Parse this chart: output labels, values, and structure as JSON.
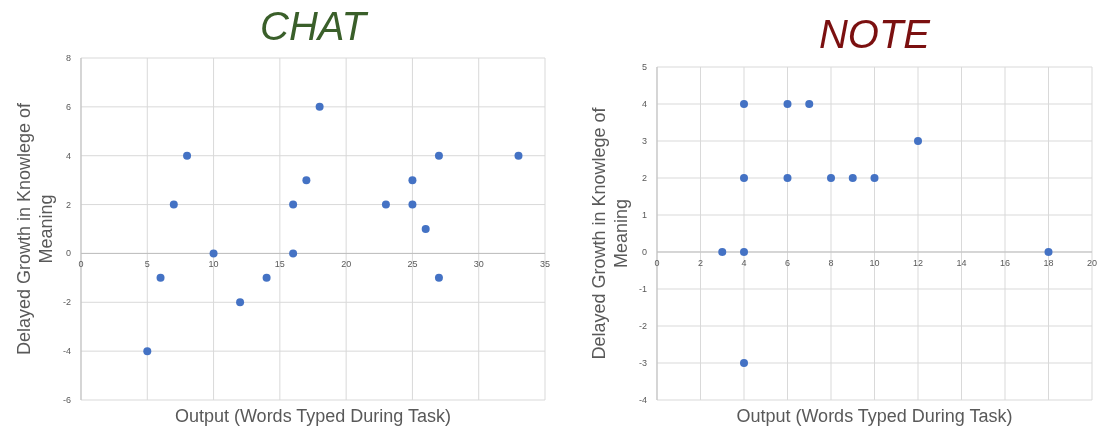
{
  "chart_data": [
    {
      "type": "scatter",
      "title": "CHAT",
      "xlabel": "Output (Words Typed During Task)",
      "ylabel": "Delayed Growth in Knowlege of Meaning",
      "x": [
        5,
        6,
        7,
        8,
        10,
        12,
        14,
        16,
        16,
        17,
        18,
        23,
        25,
        25,
        26,
        27,
        27,
        33
      ],
      "series": [
        {
          "color": "#4472c4",
          "values": [
            -4,
            -1,
            2,
            4,
            0,
            -2,
            -1,
            2,
            0,
            3,
            6,
            2,
            3,
            2,
            1,
            4,
            -1,
            4
          ]
        }
      ],
      "xlim": [
        0,
        35
      ],
      "xticks": [
        0,
        5,
        10,
        15,
        20,
        25,
        30,
        35
      ],
      "ylim": [
        -6,
        8
      ],
      "yticks": [
        -6,
        -4,
        -2,
        0,
        2,
        4,
        6,
        8
      ],
      "grid": true,
      "marker": "circle"
    },
    {
      "type": "scatter",
      "title": "NOTE",
      "xlabel": "Output (Words Typed During Task)",
      "ylabel": "Delayed Growth in Knowlege of Meaning",
      "x": [
        3,
        4,
        4,
        4,
        4,
        6,
        6,
        7,
        8,
        9,
        10,
        12,
        18
      ],
      "series": [
        {
          "color": "#4472c4",
          "values": [
            0,
            4,
            2,
            0,
            -3,
            4,
            2,
            4,
            2,
            2,
            2,
            3,
            0
          ]
        }
      ],
      "xlim": [
        0,
        20
      ],
      "xticks": [
        0,
        2,
        4,
        6,
        8,
        10,
        12,
        14,
        16,
        18,
        20
      ],
      "ylim": [
        -4,
        5
      ],
      "yticks": [
        -4,
        -3,
        -2,
        -1,
        0,
        1,
        2,
        3,
        4,
        5
      ],
      "grid": true,
      "marker": "circle"
    }
  ]
}
